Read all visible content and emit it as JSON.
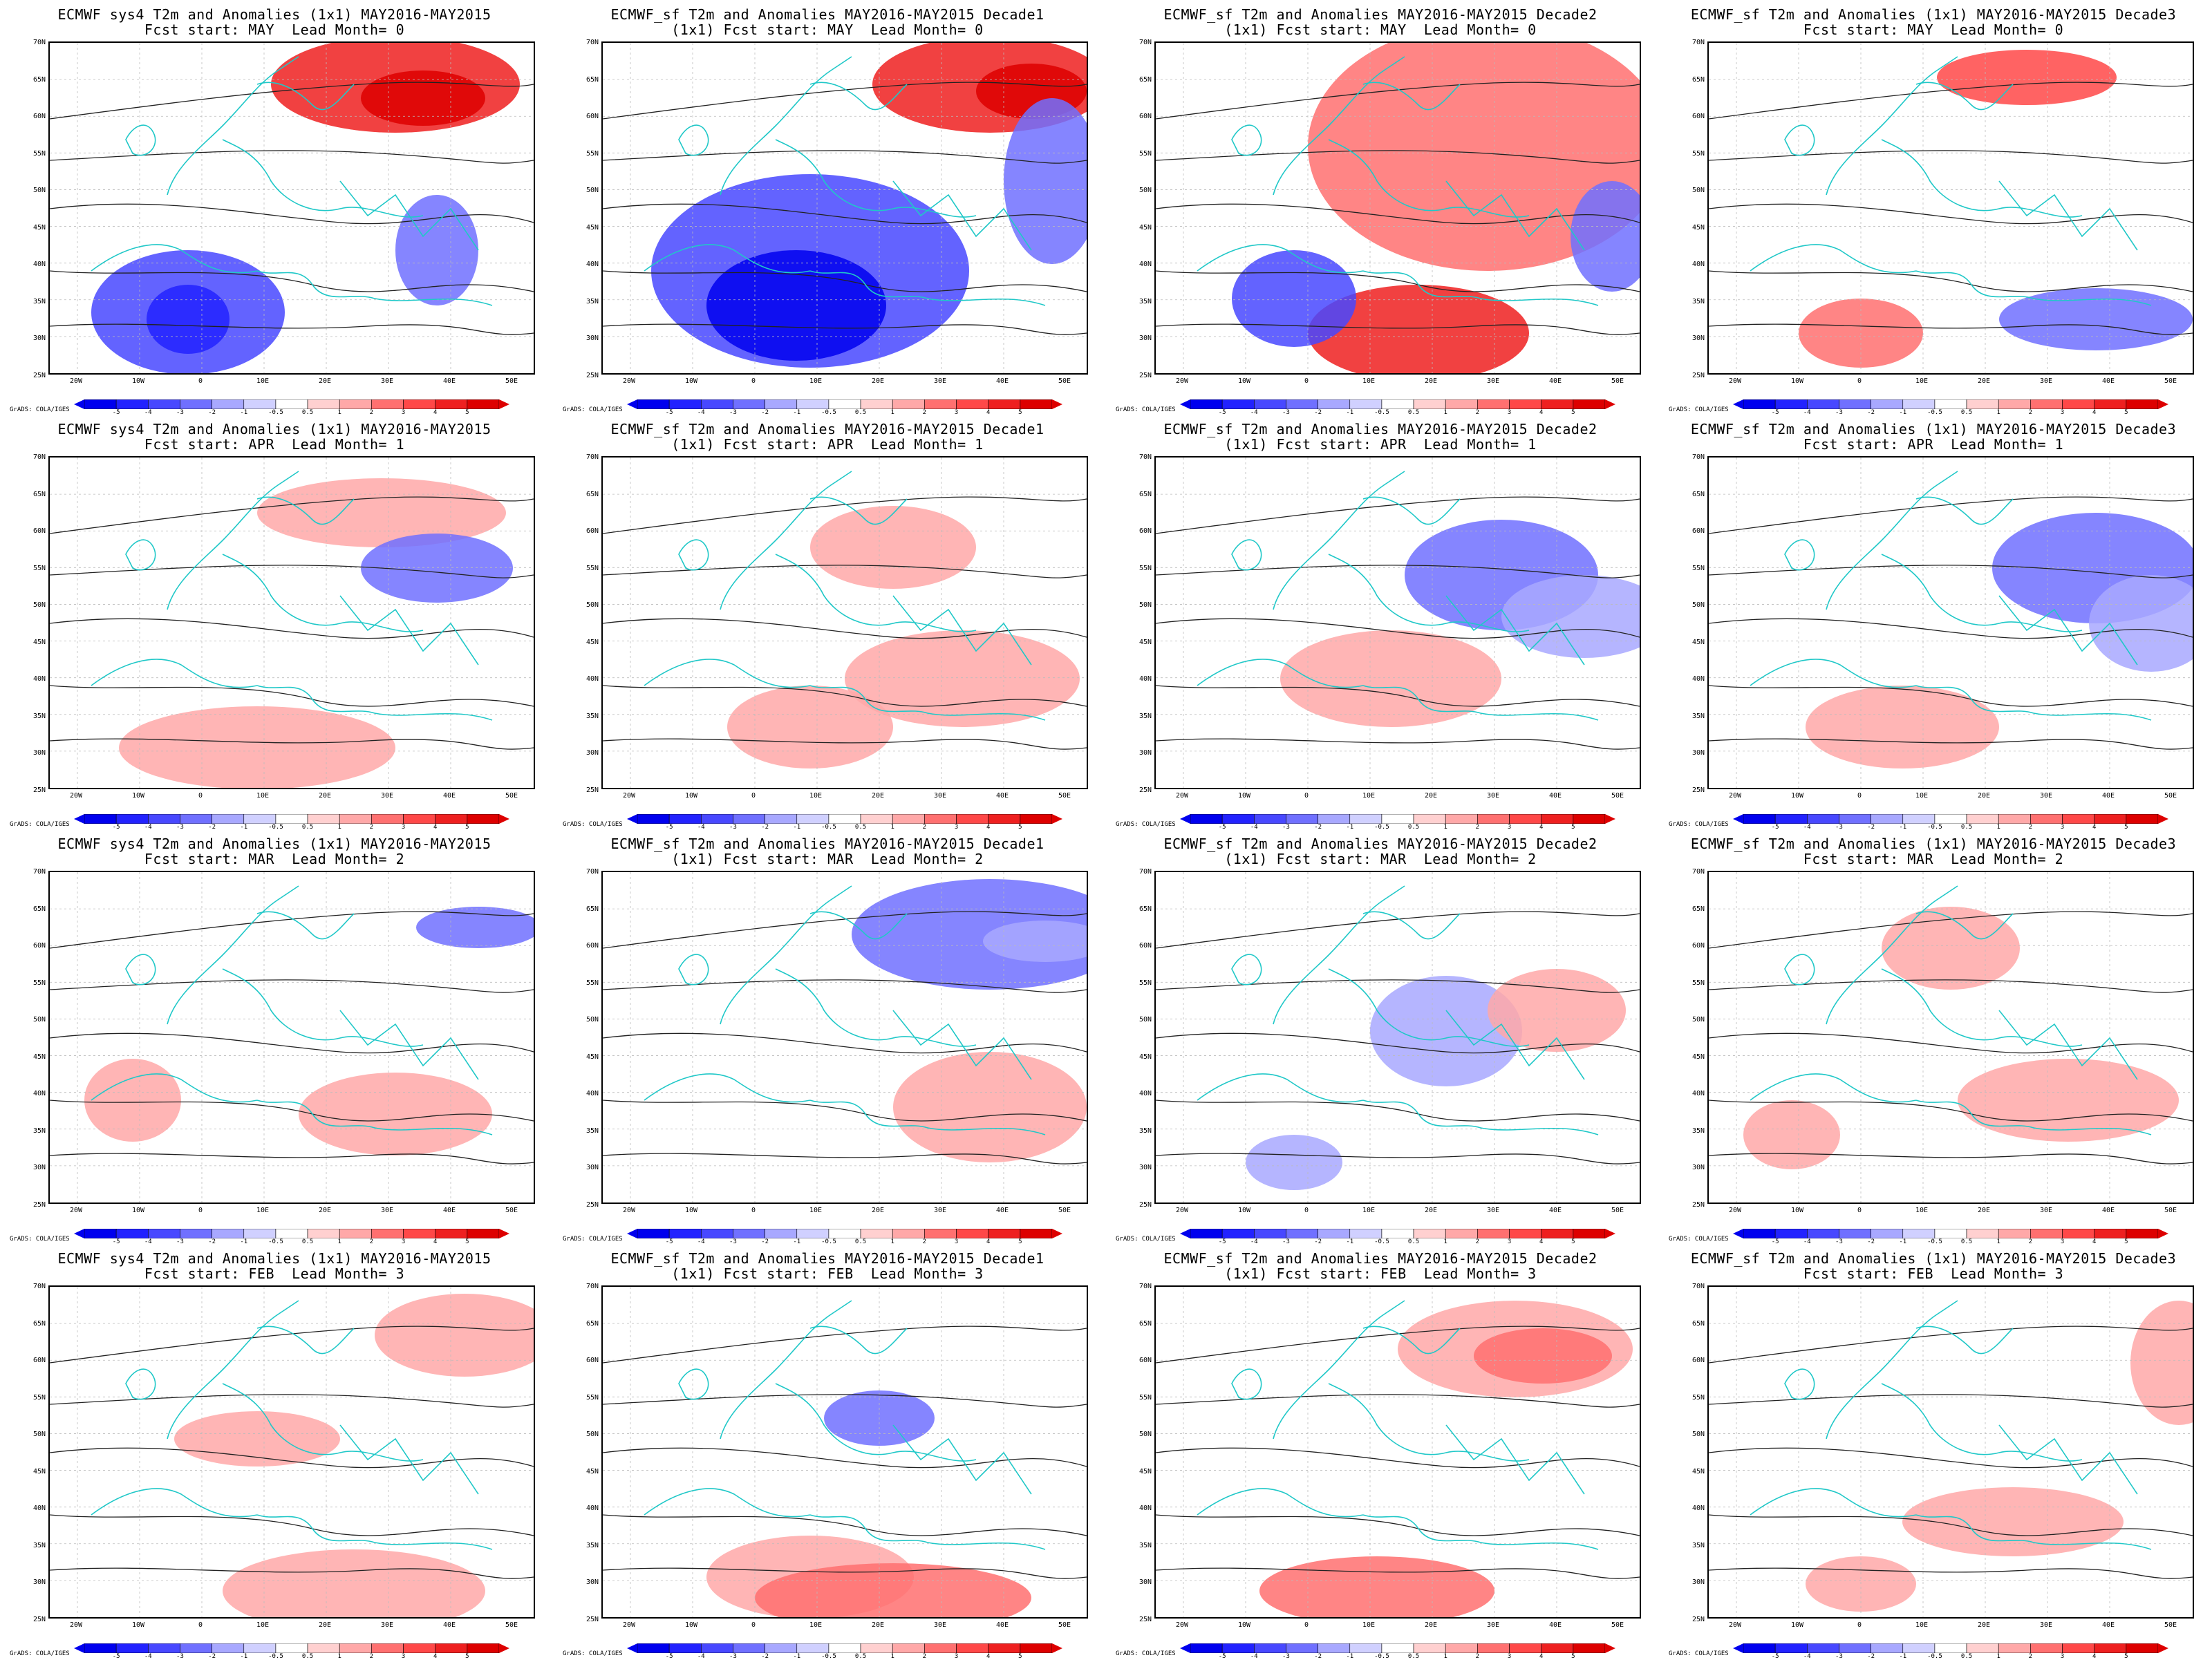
{
  "axes": {
    "lat_labels": [
      "70N",
      "65N",
      "60N",
      "55N",
      "50N",
      "45N",
      "40N",
      "35N",
      "30N",
      "25N"
    ],
    "lon_labels": [
      "20W",
      "10W",
      "0",
      "10E",
      "20E",
      "30E",
      "40E",
      "50E"
    ]
  },
  "colorbar": {
    "levels": [
      "-5",
      "-4",
      "-3",
      "-2",
      "-1",
      "-0.5",
      "0.5",
      "1",
      "2",
      "3",
      "4",
      "5"
    ],
    "colors": [
      "#0000ee",
      "#2222ff",
      "#4848ff",
      "#7070ff",
      "#a8a8ff",
      "#d0d0ff",
      "#ffffff",
      "#ffd0d0",
      "#ffa8a8",
      "#ff7070",
      "#ff4848",
      "#ee2020",
      "#dd0000"
    ],
    "credit": "GrADS: COLA/IGES"
  },
  "panels": [
    {
      "title1": "ECMWF sys4 T2m and Anomalies (1x1) MAY2016-MAY2015",
      "title2": "Fcst start: MAY  Lead Month= 0"
    },
    {
      "title1": "ECMWF_sf T2m and Anomalies MAY2016-MAY2015 Decade1",
      "title2": "(1x1) Fcst start: MAY  Lead Month= 0"
    },
    {
      "title1": "ECMWF_sf T2m and Anomalies MAY2016-MAY2015 Decade2",
      "title2": "(1x1) Fcst start: MAY  Lead Month= 0"
    },
    {
      "title1": "ECMWF_sf T2m and Anomalies (1x1) MAY2016-MAY2015 Decade3",
      "title2": "Fcst start: MAY  Lead Month= 0"
    },
    {
      "title1": "ECMWF sys4 T2m and Anomalies (1x1) MAY2016-MAY2015",
      "title2": "Fcst start: APR  Lead Month= 1"
    },
    {
      "title1": "ECMWF_sf T2m and Anomalies MAY2016-MAY2015 Decade1",
      "title2": "(1x1) Fcst start: APR  Lead Month= 1"
    },
    {
      "title1": "ECMWF_sf T2m and Anomalies MAY2016-MAY2015 Decade2",
      "title2": "(1x1) Fcst start: APR  Lead Month= 1"
    },
    {
      "title1": "ECMWF_sf T2m and Anomalies (1x1) MAY2016-MAY2015 Decade3",
      "title2": "Fcst start: APR  Lead Month= 1"
    },
    {
      "title1": "ECMWF sys4 T2m and Anomalies (1x1) MAY2016-MAY2015",
      "title2": "Fcst start: MAR  Lead Month= 2"
    },
    {
      "title1": "ECMWF_sf T2m and Anomalies MAY2016-MAY2015 Decade1",
      "title2": "(1x1) Fcst start: MAR  Lead Month= 2"
    },
    {
      "title1": "ECMWF_sf T2m and Anomalies MAY2016-MAY2015 Decade2",
      "title2": "(1x1) Fcst start: MAR  Lead Month= 2"
    },
    {
      "title1": "ECMWF_sf T2m and Anomalies (1x1) MAY2016-MAY2015 Decade3",
      "title2": "Fcst start: MAR  Lead Month= 2"
    },
    {
      "title1": "ECMWF sys4 T2m and Anomalies (1x1) MAY2016-MAY2015",
      "title2": "Fcst start: FEB  Lead Month= 3"
    },
    {
      "title1": "ECMWF_sf T2m and Anomalies MAY2016-MAY2015 Decade1",
      "title2": "(1x1) Fcst start: FEB  Lead Month= 3"
    },
    {
      "title1": "ECMWF_sf T2m and Anomalies MAY2016-MAY2015 Decade2",
      "title2": "(1x1) Fcst start: FEB  Lead Month= 3"
    },
    {
      "title1": "ECMWF_sf T2m and Anomalies (1x1) MAY2016-MAY2015 Decade3",
      "title2": "Fcst start: FEB  Lead Month= 3"
    }
  ]
}
